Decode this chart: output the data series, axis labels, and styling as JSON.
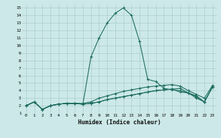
{
  "xlabel": "Humidex (Indice chaleur)",
  "bg_color": "#cce8e8",
  "grid_color": "#aacccc",
  "line_color": "#1a6b5e",
  "xlim": [
    -0.5,
    23.5
  ],
  "ylim": [
    1,
    15.5
  ],
  "xticks": [
    0,
    1,
    2,
    3,
    4,
    5,
    6,
    7,
    8,
    9,
    10,
    11,
    12,
    13,
    14,
    15,
    16,
    17,
    18,
    19,
    20,
    21,
    22,
    23
  ],
  "yticks": [
    1,
    2,
    3,
    4,
    5,
    6,
    7,
    8,
    9,
    10,
    11,
    12,
    13,
    14,
    15
  ],
  "lines": [
    [
      2.0,
      2.5,
      1.5,
      2.0,
      2.2,
      2.3,
      2.3,
      2.2,
      2.3,
      2.5,
      2.8,
      3.0,
      3.2,
      3.4,
      3.6,
      3.8,
      4.0,
      4.1,
      4.2,
      4.3,
      3.7,
      3.2,
      2.5,
      4.5
    ],
    [
      2.0,
      2.5,
      1.5,
      2.0,
      2.2,
      2.3,
      2.3,
      2.2,
      2.3,
      2.5,
      2.8,
      3.0,
      3.2,
      3.4,
      3.6,
      3.8,
      4.0,
      4.1,
      4.2,
      3.8,
      3.7,
      3.0,
      2.5,
      4.5
    ],
    [
      2.0,
      2.5,
      1.5,
      2.0,
      2.2,
      2.3,
      2.3,
      2.3,
      2.5,
      3.0,
      3.3,
      3.6,
      3.9,
      4.1,
      4.3,
      4.5,
      4.6,
      4.7,
      4.8,
      4.6,
      4.0,
      3.5,
      3.0,
      4.7
    ],
    [
      2.0,
      2.5,
      1.5,
      2.0,
      2.2,
      2.3,
      2.3,
      2.2,
      8.5,
      11.0,
      13.0,
      14.3,
      15.0,
      14.0,
      10.5,
      5.5,
      5.2,
      4.3,
      4.1,
      4.0,
      3.7,
      3.3,
      2.5,
      4.5
    ]
  ]
}
